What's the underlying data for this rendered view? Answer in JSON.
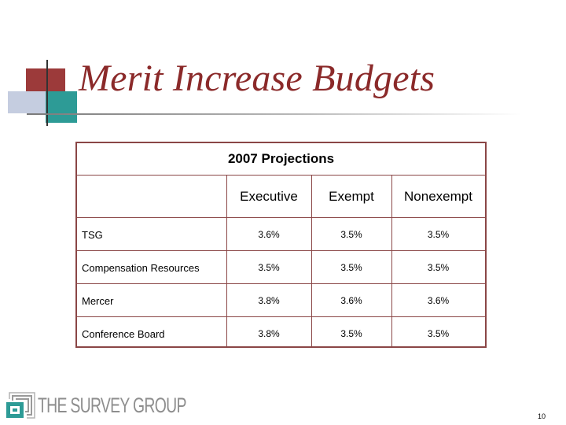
{
  "slide": {
    "title": "Merit Increase Budgets",
    "page_number": "10"
  },
  "table": {
    "header": "2007 Projections",
    "columns": [
      "Executive",
      "Exempt",
      "Nonexempt"
    ],
    "rows": [
      {
        "label": "TSG",
        "values": [
          "3.6%",
          "3.5%",
          "3.5%"
        ]
      },
      {
        "label": "Compensation Resources",
        "values": [
          "3.5%",
          "3.5%",
          "3.5%"
        ]
      },
      {
        "label": "Mercer",
        "values": [
          "3.8%",
          "3.6%",
          "3.6%"
        ]
      },
      {
        "label": "Conference Board",
        "values": [
          "3.8%",
          "3.5%",
          "3.5%"
        ]
      }
    ]
  },
  "logo": {
    "text": "The Survey Group"
  },
  "colors": {
    "title": "#8b2a2a",
    "border": "#8a4646",
    "deco_red": "#9c3a3a",
    "deco_teal": "#2d9b96",
    "deco_blue": "#c5cde0",
    "logo_teal": "#2d9b96",
    "logo_gray": "#8e8e8e"
  }
}
